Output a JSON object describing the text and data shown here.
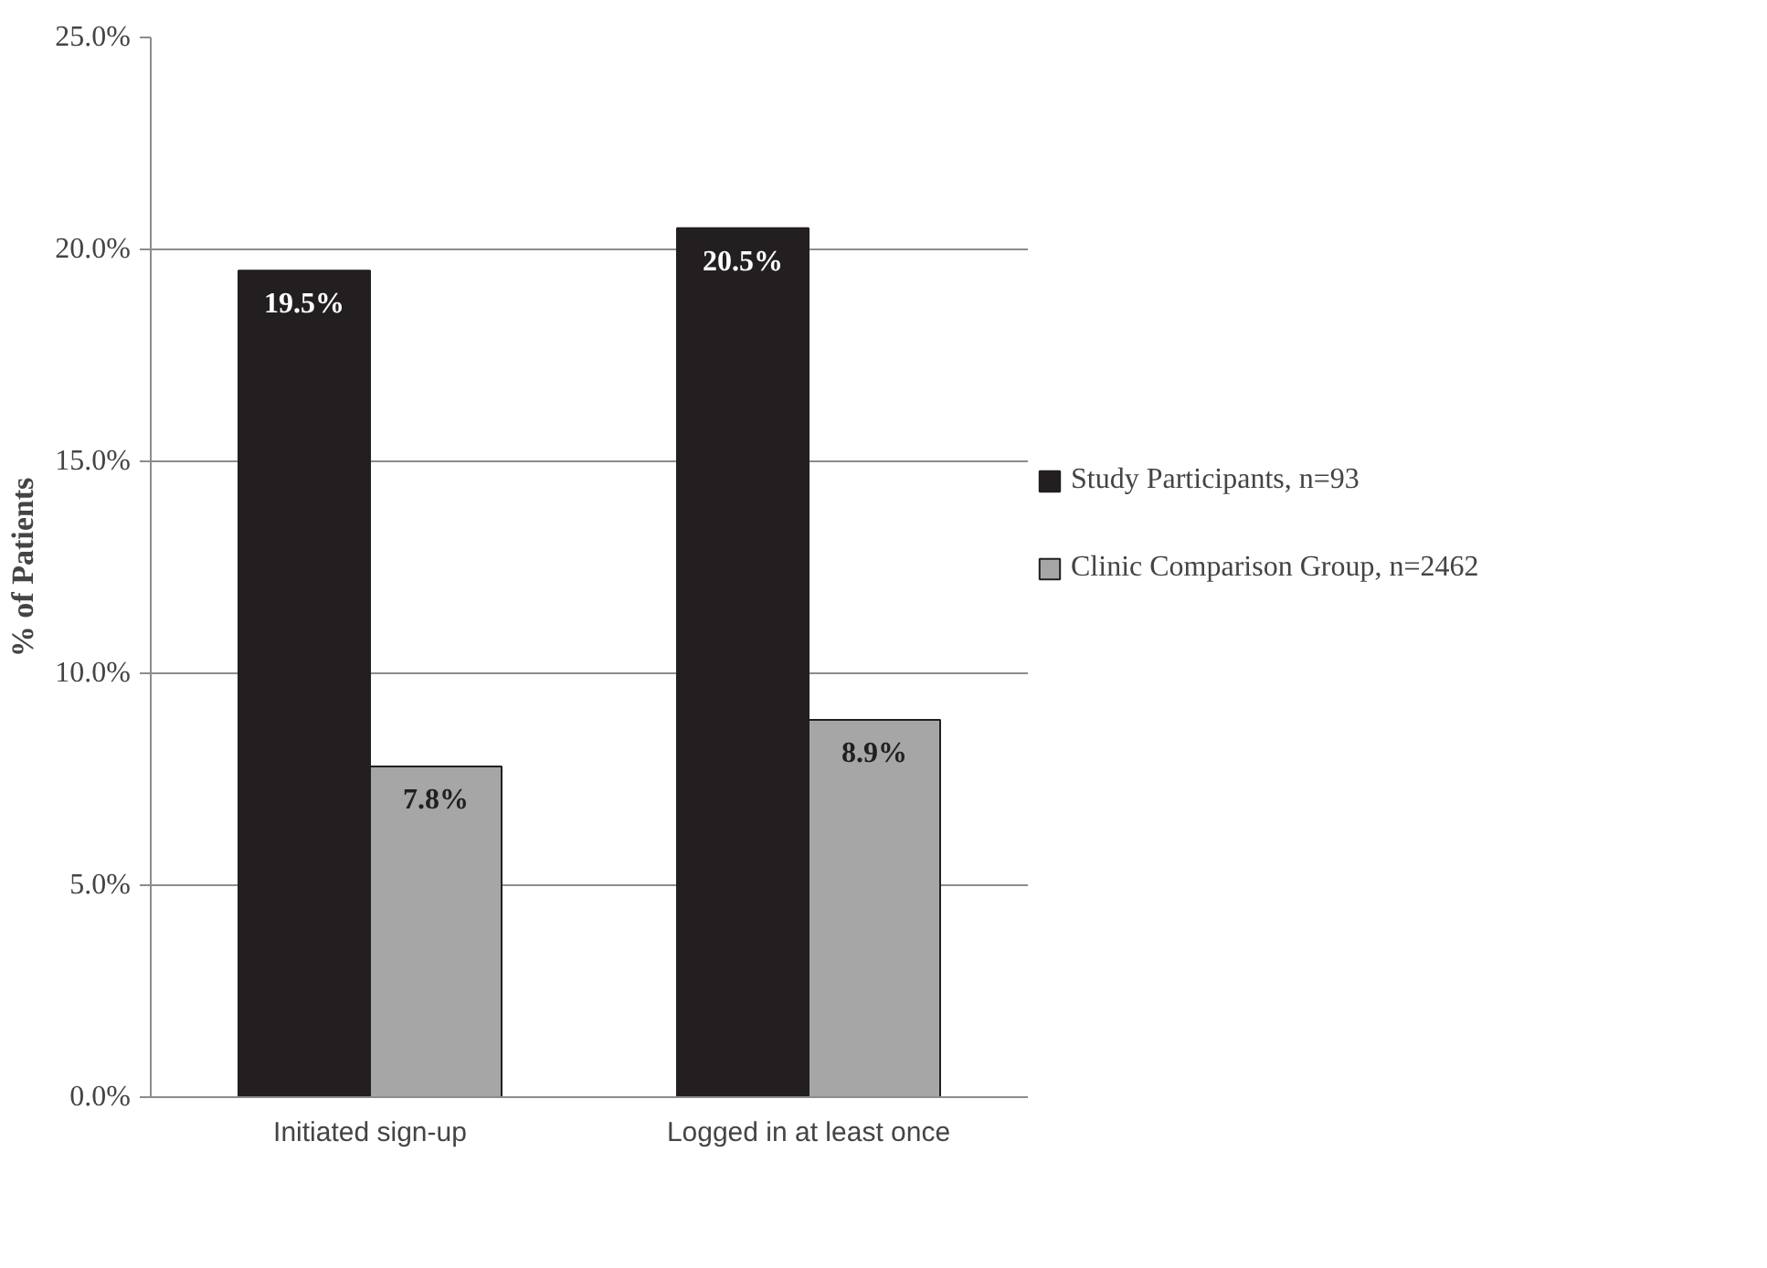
{
  "chart_data": {
    "type": "bar",
    "ylabel": "% of Patients",
    "categories": [
      "Initiated sign-up",
      "Logged in at least once"
    ],
    "series": [
      {
        "name": "Study Participants, n=93",
        "color": "#231f20",
        "values": [
          19.5,
          20.5
        ],
        "value_labels": [
          "19.5%",
          "20.5%"
        ]
      },
      {
        "name": "Clinic Comparison Group, n=2462",
        "color": "#a6a6a6",
        "values": [
          7.8,
          8.9
        ],
        "value_labels": [
          "7.8%",
          "8.9%"
        ]
      }
    ],
    "ylim": [
      0,
      25
    ],
    "yticks": [
      {
        "value": 0,
        "label": "0.0%"
      },
      {
        "value": 5,
        "label": "5.0%"
      },
      {
        "value": 10,
        "label": "10.0%"
      },
      {
        "value": 15,
        "label": "15.0%"
      },
      {
        "value": 20,
        "label": "20.0%"
      },
      {
        "value": 25,
        "label": "25.0%"
      }
    ],
    "grid": "y",
    "legend": "right"
  }
}
